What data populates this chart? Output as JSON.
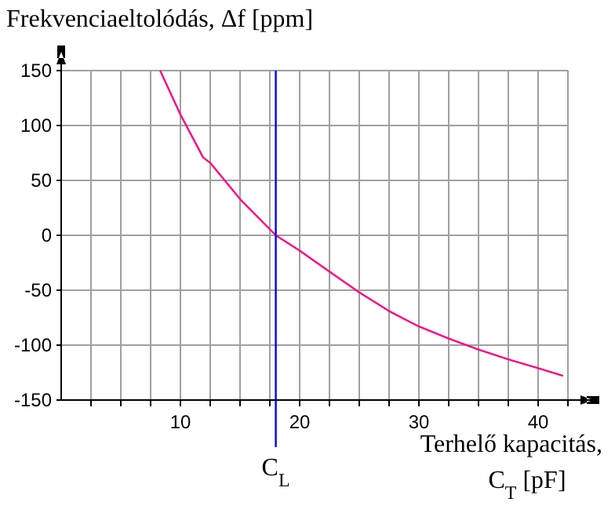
{
  "chart_data": {
    "type": "line",
    "ylabel": "Frekvenciaeltolódás,  Δf [ppm]",
    "xlabel": "Terhelő kapacitás, C$_{T}$ [pF]",
    "x": [
      8.3,
      10,
      11.9,
      12.5,
      15,
      18,
      20,
      22.5,
      25,
      27.5,
      30,
      32.5,
      35,
      37.5,
      40,
      42.1
    ],
    "series": [
      {
        "color": "#ff0080",
        "values": [
          150,
          110,
          71,
          66,
          33,
          0,
          -14,
          -33,
          -52,
          -69,
          -83,
          -94,
          -104,
          -113,
          -121,
          -128
        ]
      }
    ],
    "xlim": [
      0,
      42.5
    ],
    "xticks": [
      {
        "value": 2.5,
        "label": null
      },
      {
        "value": 5,
        "label": null
      },
      {
        "value": 7.5,
        "label": null
      },
      10,
      {
        "value": 12.5,
        "label": null
      },
      {
        "value": 15,
        "label": null
      },
      {
        "value": 17.5,
        "label": null
      },
      20,
      {
        "value": 22.5,
        "label": null
      },
      {
        "value": 25,
        "label": null
      },
      {
        "value": 27.5,
        "label": null
      },
      30,
      {
        "value": 32.5,
        "label": null
      },
      {
        "value": 35,
        "label": null
      },
      {
        "value": 37.5,
        "label": null
      },
      40,
      {
        "value": 42.5,
        "label": null
      }
    ],
    "ylim": [
      -150,
      150
    ],
    "yticks": [
      -150,
      -100,
      -50,
      0,
      50,
      100,
      150
    ],
    "grid": true,
    "marker": "none",
    "line_style": "solid",
    "ref_lines": [
      {
        "axis": "x",
        "value": 18,
        "label": "C$_{L}$",
        "color": "#0000ff"
      }
    ]
  }
}
